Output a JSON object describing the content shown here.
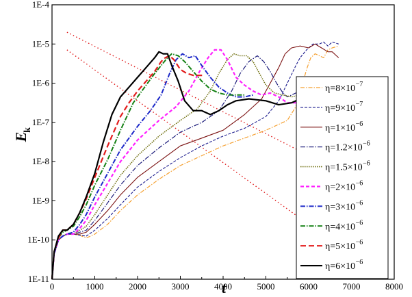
{
  "chart_data": {
    "type": "line",
    "ylabel": "E",
    "ylabel_subscript": "k",
    "xlabel": "t",
    "xlim": [
      0,
      8000
    ],
    "ylim_log10": [
      -11,
      -4
    ],
    "y_scale": "log",
    "x_ticks": [
      0,
      1000,
      2000,
      3000,
      4000,
      5000,
      6000,
      7000,
      8000
    ],
    "x_tick_labels": [
      "0",
      "1000",
      "2000",
      "3000",
      "4000",
      "5000",
      "6000",
      "7000",
      "8000"
    ],
    "y_ticks_log10": [
      -11,
      -10,
      -9,
      -8,
      -7,
      -6,
      -5,
      -4
    ],
    "y_tick_labels": [
      "1E-11",
      "1E-10",
      "1E-9",
      "1E-8",
      "1E-7",
      "1E-6",
      "1E-5",
      "1E-4"
    ],
    "legend_position": "lower-right",
    "series": [
      {
        "name": "η=8×10⁻⁷",
        "legend_prefix": "η=8×10",
        "legend_exp": "−7",
        "color": "#f5a030",
        "dash": "6,2,1.5,2",
        "width": 1.2,
        "x": [
          0,
          50,
          150,
          250,
          350,
          500,
          650,
          800,
          1000,
          1300,
          1600,
          2000,
          2500,
          3000,
          3500,
          4000,
          4500,
          5000,
          5300,
          5500,
          5700,
          5850,
          5950,
          6050,
          6150,
          6250,
          6350,
          6450,
          6550,
          6700
        ],
        "y_log10": [
          -11.0,
          -10.35,
          -10.0,
          -9.9,
          -9.85,
          -9.85,
          -9.88,
          -9.95,
          -9.85,
          -9.6,
          -9.25,
          -8.85,
          -8.45,
          -8.1,
          -7.85,
          -7.6,
          -7.4,
          -7.2,
          -7.05,
          -6.95,
          -6.6,
          -6.05,
          -5.65,
          -5.35,
          -5.25,
          -5.3,
          -5.35,
          -5.15,
          -5.1,
          -5.05
        ]
      },
      {
        "name": "η=9×10⁻⁷",
        "legend_prefix": "η=9×10",
        "legend_exp": "−7",
        "color": "#1a1a8c",
        "dash": "4,2",
        "width": 1.1,
        "x": [
          0,
          50,
          150,
          250,
          350,
          500,
          650,
          800,
          1000,
          1300,
          1600,
          2000,
          2500,
          3000,
          3500,
          4000,
          4500,
          5000,
          5300,
          5500,
          5700,
          5800,
          5950,
          6100,
          6250,
          6350,
          6450,
          6550,
          6700
        ],
        "y_log10": [
          -11.0,
          -10.35,
          -10.0,
          -9.9,
          -9.85,
          -9.85,
          -9.88,
          -9.9,
          -9.75,
          -9.45,
          -9.1,
          -8.65,
          -8.25,
          -7.9,
          -7.6,
          -7.35,
          -7.15,
          -6.85,
          -6.45,
          -6.0,
          -5.55,
          -5.35,
          -5.15,
          -5.0,
          -5.0,
          -4.95,
          -5.05,
          -4.95,
          -5.0
        ]
      },
      {
        "name": "η=1×10⁻⁶",
        "legend_prefix": "η=1×10",
        "legend_exp": "−6",
        "color": "#7a1010",
        "dash": "",
        "width": 1.1,
        "x": [
          0,
          50,
          150,
          250,
          350,
          500,
          650,
          800,
          1000,
          1300,
          1600,
          2000,
          2500,
          3000,
          3500,
          4000,
          4500,
          4900,
          5100,
          5300,
          5450,
          5600,
          5800,
          6000,
          6150,
          6300,
          6450,
          6550,
          6650,
          6700
        ],
        "y_log10": [
          -11.0,
          -10.35,
          -10.0,
          -9.9,
          -9.85,
          -9.85,
          -9.85,
          -9.8,
          -9.6,
          -9.25,
          -8.85,
          -8.4,
          -8.0,
          -7.6,
          -7.4,
          -7.2,
          -6.8,
          -6.4,
          -6.0,
          -5.6,
          -5.25,
          -5.1,
          -5.05,
          -5.1,
          -5.0,
          -5.1,
          -5.2,
          -5.2,
          -5.3,
          -5.35
        ]
      },
      {
        "name": "η=1.2×10⁻⁶",
        "legend_prefix": "η=1.2×10",
        "legend_exp": "−6",
        "color": "#1a1a7a",
        "dash": "7,2,1.5,2",
        "width": 1.2,
        "x": [
          0,
          50,
          150,
          250,
          350,
          500,
          650,
          800,
          1000,
          1300,
          1600,
          2000,
          2500,
          3000,
          3500,
          3900,
          4200,
          4400,
          4600,
          4800,
          4950,
          5100,
          5250,
          5400,
          5500,
          5600,
          5800
        ],
        "y_log10": [
          -11.0,
          -10.35,
          -10.0,
          -9.9,
          -9.85,
          -9.85,
          -9.8,
          -9.75,
          -9.5,
          -9.05,
          -8.6,
          -8.1,
          -7.65,
          -7.25,
          -7.0,
          -6.7,
          -6.2,
          -5.75,
          -5.45,
          -5.3,
          -5.45,
          -5.7,
          -6.0,
          -6.25,
          -6.35,
          -6.3,
          -6.2
        ]
      },
      {
        "name": "η=1.5×10⁻⁶",
        "legend_prefix": "η=1.5×10",
        "legend_exp": "−6",
        "color": "#707010",
        "dash": "1.5,1.5",
        "width": 1.6,
        "x": [
          0,
          50,
          150,
          250,
          350,
          500,
          650,
          800,
          1000,
          1300,
          1600,
          2000,
          2500,
          3000,
          3400,
          3700,
          3900,
          4100,
          4250,
          4400,
          4550,
          4700,
          4850,
          5000,
          5200,
          5400,
          5600,
          5800
        ],
        "y_log10": [
          -11.0,
          -10.35,
          -10.0,
          -9.9,
          -9.85,
          -9.85,
          -9.75,
          -9.65,
          -9.35,
          -8.85,
          -8.35,
          -7.85,
          -7.35,
          -6.95,
          -6.65,
          -6.2,
          -5.75,
          -5.4,
          -5.25,
          -5.3,
          -5.3,
          -5.45,
          -5.75,
          -6.05,
          -6.25,
          -6.3,
          -6.35,
          -6.3
        ]
      },
      {
        "name": "η=2×10⁻⁶",
        "legend_prefix": "η=2×10",
        "legend_exp": "−6",
        "color": "#ff20ff",
        "dash": "5,3",
        "width": 2.2,
        "x": [
          0,
          50,
          150,
          250,
          350,
          500,
          650,
          800,
          1000,
          1300,
          1600,
          2000,
          2500,
          2900,
          3200,
          3450,
          3650,
          3800,
          3950,
          4100,
          4300,
          4500,
          4700,
          4900,
          5100,
          5300,
          5500,
          5650,
          5800
        ],
        "y_log10": [
          -11.0,
          -10.35,
          -10.0,
          -9.9,
          -9.85,
          -9.85,
          -9.7,
          -9.5,
          -9.1,
          -8.55,
          -8.0,
          -7.45,
          -6.95,
          -6.6,
          -6.2,
          -5.7,
          -5.35,
          -5.15,
          -5.15,
          -5.4,
          -5.85,
          -6.05,
          -6.2,
          -6.3,
          -6.25,
          -6.35,
          -6.5,
          -6.5,
          -6.5
        ]
      },
      {
        "name": "η=3×10⁻⁶",
        "legend_prefix": "η=3×10",
        "legend_exp": "−6",
        "color": "#1c28c8",
        "dash": "7,2,1.5,2",
        "width": 2.0,
        "x": [
          0,
          50,
          150,
          250,
          350,
          500,
          650,
          800,
          1000,
          1300,
          1600,
          2000,
          2300,
          2550,
          2750,
          2900,
          3050,
          3200,
          3350,
          3500,
          3700,
          3900,
          4100,
          4300,
          4500,
          4700
        ],
        "y_log10": [
          -11.0,
          -10.35,
          -10.0,
          -9.9,
          -9.85,
          -9.8,
          -9.6,
          -9.35,
          -8.9,
          -8.3,
          -7.7,
          -7.1,
          -6.7,
          -6.3,
          -5.75,
          -5.4,
          -5.25,
          -5.35,
          -5.3,
          -5.55,
          -5.85,
          -6.1,
          -6.25,
          -6.35,
          -6.35,
          -6.3
        ]
      },
      {
        "name": "η=4×10⁻⁶",
        "legend_prefix": "η=4×10",
        "legend_exp": "−6",
        "color": "#138013",
        "dash": "7,2,1.5,2",
        "width": 2.0,
        "x": [
          0,
          50,
          150,
          250,
          350,
          500,
          650,
          800,
          1000,
          1300,
          1600,
          1900,
          2200,
          2400,
          2550,
          2700,
          2800,
          2950,
          3100,
          3300,
          3500,
          3700,
          3900,
          4100,
          4300,
          4500
        ],
        "y_log10": [
          -11.0,
          -10.3,
          -9.95,
          -9.8,
          -9.75,
          -9.65,
          -9.4,
          -9.1,
          -8.6,
          -7.95,
          -7.2,
          -6.5,
          -6.05,
          -5.75,
          -5.55,
          -5.35,
          -5.25,
          -5.3,
          -5.45,
          -5.7,
          -5.95,
          -6.15,
          -6.25,
          -6.3,
          -6.3,
          -6.3
        ]
      },
      {
        "name": "η=5×10⁻⁶",
        "legend_prefix": "η=5×10",
        "legend_exp": "−6",
        "color": "#e21c1c",
        "dash": "8,4",
        "width": 2.2,
        "x": [
          0,
          50,
          150,
          250,
          350,
          500,
          650,
          800,
          1000,
          1300,
          1600,
          1800,
          2000,
          2200,
          2400,
          2550,
          2650,
          2750,
          2850,
          3000,
          3150,
          3300,
          3450,
          3550
        ],
        "y_log10": [
          -11.0,
          -10.3,
          -9.95,
          -9.75,
          -9.75,
          -9.6,
          -9.3,
          -8.95,
          -8.4,
          -7.6,
          -6.85,
          -6.5,
          -6.2,
          -5.95,
          -5.7,
          -5.45,
          -5.35,
          -5.3,
          -5.4,
          -5.65,
          -5.75,
          -5.8,
          -5.8,
          -5.8
        ]
      },
      {
        "name": "η=6×10⁻⁶",
        "legend_prefix": "η=6×10",
        "legend_exp": "−6",
        "color": "#000000",
        "dash": "",
        "width": 2.2,
        "x": [
          0,
          50,
          150,
          250,
          350,
          500,
          650,
          800,
          1000,
          1200,
          1400,
          1600,
          1800,
          2000,
          2200,
          2400,
          2500,
          2600,
          2700,
          2800,
          2950,
          3100,
          3300,
          3500,
          3700,
          3900,
          4100,
          4300,
          4600,
          5000,
          5300,
          5600,
          5900
        ],
        "y_log10": [
          -11.0,
          -10.3,
          -9.9,
          -9.75,
          -9.75,
          -9.6,
          -9.3,
          -8.9,
          -8.3,
          -7.5,
          -6.8,
          -6.35,
          -6.1,
          -5.85,
          -5.6,
          -5.35,
          -5.2,
          -5.25,
          -5.25,
          -5.55,
          -5.95,
          -6.45,
          -6.7,
          -6.7,
          -6.8,
          -6.7,
          -6.55,
          -6.45,
          -6.4,
          -6.45,
          -6.55,
          -6.5,
          -6.35
        ]
      }
    ],
    "reference_lines": [
      {
        "x": [
          350,
          7000
        ],
        "y_log10": [
          -4.7,
          -8.4
        ]
      },
      {
        "x": [
          350,
          6000
        ],
        "y_log10": [
          -5.15,
          -9.6
        ]
      }
    ],
    "reference_color": "#e01818"
  }
}
